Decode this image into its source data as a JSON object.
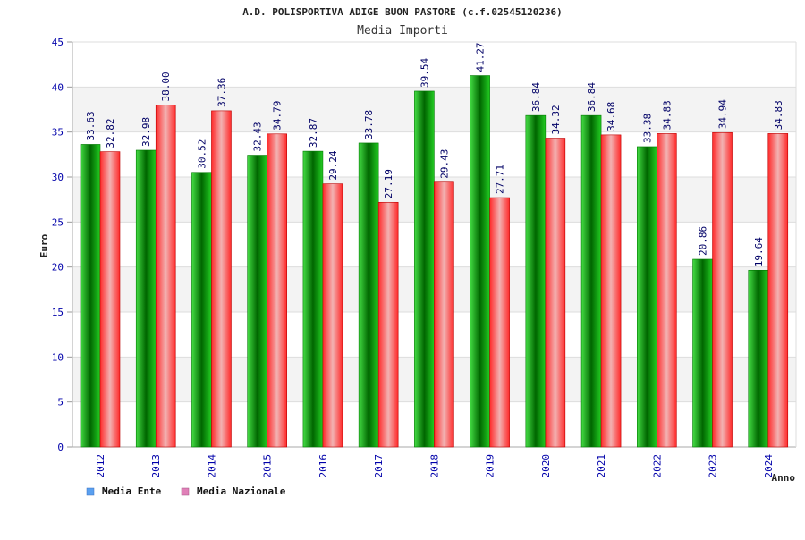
{
  "chart_data": {
    "type": "bar",
    "title": "A.D. POLISPORTIVA ADIGE BUON PASTORE (c.f.02545120236)",
    "subtitle": "Media Importi",
    "xlabel": "Anno",
    "ylabel": "Euro",
    "ylim": [
      0,
      45
    ],
    "yticks": [
      "0",
      "5",
      "10",
      "15",
      "20",
      "25",
      "30",
      "35",
      "40",
      "45"
    ],
    "grid": true,
    "legend_position": "bottom-left",
    "categories": [
      "2012",
      "2013",
      "2014",
      "2015",
      "2016",
      "2017",
      "2018",
      "2019",
      "2020",
      "2021",
      "2022",
      "2023",
      "2024"
    ],
    "series": [
      {
        "name": "Media Ente",
        "color": "#00c000",
        "legend_color": "#5aa0f0",
        "values": [
          33.63,
          32.98,
          30.52,
          32.43,
          32.87,
          33.78,
          39.54,
          41.27,
          36.84,
          36.84,
          33.38,
          20.86,
          19.64
        ],
        "labels": [
          "33.63",
          "32.98",
          "30.52",
          "32.43",
          "32.87",
          "33.78",
          "39.54",
          "41.27",
          "36.84",
          "36.84",
          "33.38",
          "20.86",
          "19.64"
        ]
      },
      {
        "name": "Media Nazionale",
        "color": "#f01820",
        "legend_color": "#e080b8",
        "values": [
          32.82,
          38.0,
          37.36,
          34.79,
          29.24,
          27.19,
          29.43,
          27.71,
          34.32,
          34.68,
          34.83,
          34.94,
          34.83
        ],
        "labels": [
          "32.82",
          "38.00",
          "37.36",
          "34.79",
          "29.24",
          "27.19",
          "29.43",
          "27.71",
          "34.32",
          "34.68",
          "34.83",
          "34.94",
          "34.83"
        ]
      }
    ]
  }
}
